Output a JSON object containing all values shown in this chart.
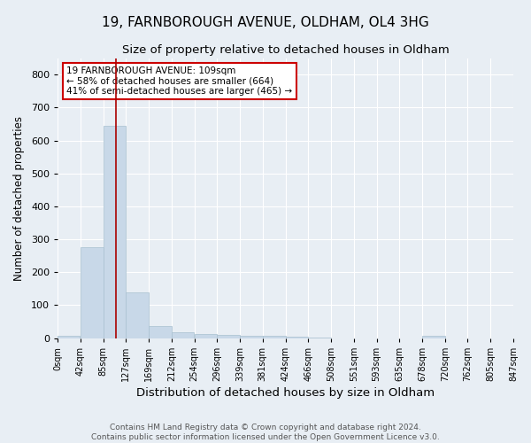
{
  "title1": "19, FARNBOROUGH AVENUE, OLDHAM, OL4 3HG",
  "title2": "Size of property relative to detached houses in Oldham",
  "xlabel": "Distribution of detached houses by size in Oldham",
  "ylabel": "Number of detached properties",
  "bar_edges": [
    0,
    42,
    85,
    127,
    169,
    212,
    254,
    296,
    339,
    381,
    424,
    466,
    508,
    551,
    593,
    635,
    678,
    720,
    762,
    805,
    847
  ],
  "bar_heights": [
    8,
    275,
    645,
    140,
    38,
    18,
    12,
    10,
    8,
    8,
    5,
    3,
    0,
    0,
    0,
    0,
    7,
    0,
    0,
    0,
    0
  ],
  "bar_color": "#c8d8e8",
  "bar_edgecolor": "#a8c0d0",
  "property_size": 109,
  "vline_color": "#aa0000",
  "annotation_text": "19 FARNBOROUGH AVENUE: 109sqm\n← 58% of detached houses are smaller (664)\n41% of semi-detached houses are larger (465) →",
  "annotation_box_color": "#ffffff",
  "annotation_box_edgecolor": "#cc0000",
  "ylim": [
    0,
    850
  ],
  "yticks": [
    0,
    100,
    200,
    300,
    400,
    500,
    600,
    700,
    800
  ],
  "footnote": "Contains HM Land Registry data © Crown copyright and database right 2024.\nContains public sector information licensed under the Open Government Licence v3.0.",
  "background_color": "#e8eef4",
  "plot_background_color": "#e8eef4",
  "grid_color": "#ffffff",
  "title1_fontsize": 11,
  "title2_fontsize": 9.5,
  "xlabel_fontsize": 9.5,
  "ylabel_fontsize": 8.5,
  "tick_label_fontsize": 7,
  "annotation_fontsize": 7.5,
  "footnote_fontsize": 6.5
}
